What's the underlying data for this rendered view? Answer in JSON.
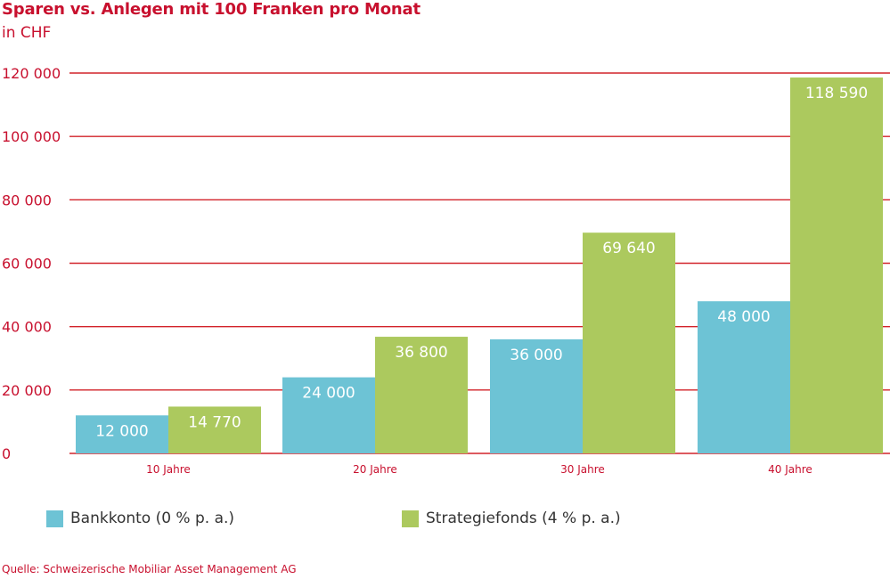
{
  "header": {
    "title": "Sparen vs. Anlegen mit 100 Franken pro Monat",
    "subtitle": "in CHF"
  },
  "colors": {
    "accent": "#c8102e",
    "bankkonto": "#6dc3d5",
    "strategiefonds": "#acc95e",
    "gridline": "#d2232a",
    "bar_label": "#ffffff"
  },
  "chart_data": {
    "type": "bar",
    "title": "Sparen vs. Anlegen mit 100 Franken pro Monat",
    "subtitle": "in CHF",
    "xlabel": "",
    "ylabel": "in CHF",
    "categories": [
      "10 Jahre",
      "20 Jahre",
      "30 Jahre",
      "40 Jahre"
    ],
    "series": [
      {
        "name": "Bankkonto (0 % p. a.)",
        "values": [
          12000,
          24000,
          36000,
          48000
        ],
        "labels": [
          "12 000",
          "24 000",
          "36 000",
          "48 000"
        ]
      },
      {
        "name": "Strategiefonds (4 % p. a.)",
        "values": [
          14770,
          36800,
          69640,
          118590
        ],
        "labels": [
          "14 770",
          "36 800",
          "69 640",
          "118 590"
        ]
      }
    ],
    "ylim": [
      0,
      120000
    ],
    "yticks": [
      0,
      20000,
      40000,
      60000,
      80000,
      100000,
      120000
    ],
    "ytick_labels": [
      "0",
      "20 000",
      "40 000",
      "60 000",
      "80 000",
      "100 000",
      "120 000"
    ],
    "grid": true,
    "legend_position": "bottom"
  },
  "legend": {
    "items": [
      {
        "label": "Bankkonto (0 % p. a.)"
      },
      {
        "label": "Strategiefonds (4 % p. a.)"
      }
    ]
  },
  "footer": {
    "source": "Quelle: Schweizerische Mobiliar Asset Management AG"
  }
}
